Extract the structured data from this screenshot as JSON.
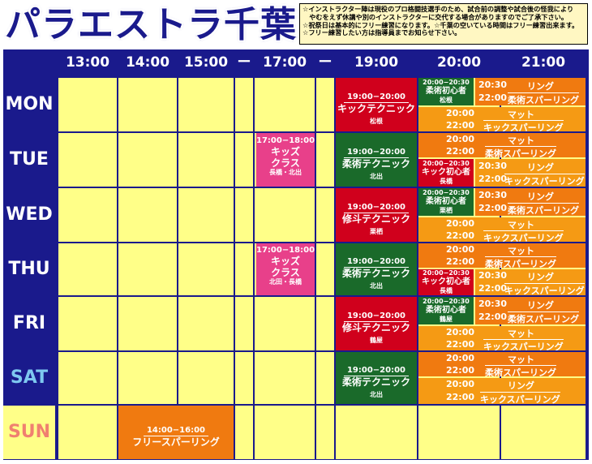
{
  "title": "パラエストラ千葉",
  "notice": [
    "☆インストラクター陣は現役のプロ格闘技選手のため、試合前の調整や試合後の怪我により",
    "　やむをえず休講や別のインストラクターに交代する場合がありますのでご了承下さい。",
    "☆祝祭日は基本的にフリー練習になります。☆千葉の空いている時間はフリー練習出来ます。",
    "☆フリー練習したい方は指導員までお知らせ下さい。"
  ],
  "headers": [
    "13:00",
    "14:00",
    "15:00",
    "ー",
    "17:00",
    "ー",
    "19:00",
    "20:00",
    "21:00"
  ],
  "days": [
    {
      "label": "MON",
      "color": "#ffffff"
    },
    {
      "label": "TUE",
      "color": "#ffffff"
    },
    {
      "label": "WED",
      "color": "#ffffff"
    },
    {
      "label": "THU",
      "color": "#ffffff"
    },
    {
      "label": "FRI",
      "color": "#ffffff"
    },
    {
      "label": "SAT",
      "color": "#7ec8f0"
    },
    {
      "label": "SUN",
      "color": "#f08070"
    }
  ],
  "colors": {
    "navy": "#1a1a8c",
    "cell": "#ffff88",
    "red": "#d0001c",
    "green": "#1a6a2a",
    "pink": "#e8408a",
    "orange": "#f07a10",
    "amber": "#f59a14"
  },
  "events": {
    "mon_main": {
      "time": "19:00−20:00",
      "name": "キックテクニック",
      "instructor": "松根"
    },
    "mon_small": {
      "time": "20:00−20:30",
      "name": "柔術初心者",
      "instructor": "松根"
    },
    "mon_ring": {
      "t1": "20:30",
      "t2": "22:00",
      "kind": "リング",
      "name": "柔術スパーリング"
    },
    "mon_mat": {
      "t1": "20:00",
      "t2": "22:00",
      "kind": "マット",
      "name": "キックスパーリング"
    },
    "tue_kids": {
      "time": "17:00−18:00",
      "name1": "キッズ",
      "name2": "クラス",
      "instructor": "長橋・北出"
    },
    "tue_main": {
      "time": "19:00−20:00",
      "name": "柔術テクニック",
      "instructor": "北出"
    },
    "tue_mat": {
      "t1": "20:00",
      "t2": "22:00",
      "kind": "マット",
      "name": "柔術スパーリング"
    },
    "tue_small": {
      "time": "20:00−20:30",
      "name": "キック初心者",
      "instructor": "長橋"
    },
    "tue_ring": {
      "t1": "20:30",
      "t2": "22:00",
      "kind": "リング",
      "name": "キックスパーリング"
    },
    "wed_main": {
      "time": "19:00−20:00",
      "name": "修斗テクニック",
      "instructor": "栗栖"
    },
    "wed_small": {
      "time": "20:00−20:30",
      "name": "柔術初心者",
      "instructor": "栗栖"
    },
    "wed_ring": {
      "t1": "20:30",
      "t2": "22:00",
      "kind": "リング",
      "name": "柔術スパーリング"
    },
    "wed_mat": {
      "t1": "20:00",
      "t2": "22:00",
      "kind": "マット",
      "name": "キックスパーリング"
    },
    "thu_kids": {
      "time": "17:00−18:00",
      "name1": "キッズ",
      "name2": "クラス",
      "instructor": "北田・長橋"
    },
    "thu_main": {
      "time": "19:00−20:00",
      "name": "柔術テクニック",
      "instructor": "北出"
    },
    "thu_mat": {
      "t1": "20:00",
      "t2": "22:00",
      "kind": "マット",
      "name": "柔術スパーリング"
    },
    "thu_small": {
      "time": "20:00−20:30",
      "name": "キック初心者",
      "instructor": "長橋"
    },
    "thu_ring": {
      "t1": "20:30",
      "t2": "22:00",
      "kind": "リング",
      "name": "キックスパーリング"
    },
    "fri_main": {
      "time": "19:00−20:00",
      "name": "修斗テクニック",
      "instructor": "鶴屋"
    },
    "fri_small": {
      "time": "20:00−20:30",
      "name": "柔術初心者",
      "instructor": "鶴屋"
    },
    "fri_ring": {
      "t1": "20:30",
      "t2": "22:00",
      "kind": "リング",
      "name": "柔術スパーリング"
    },
    "fri_mat": {
      "t1": "20:00",
      "t2": "22:00",
      "kind": "マット",
      "name": "キックスパーリング"
    },
    "sat_main": {
      "time": "19:00−20:00",
      "name": "柔術テクニック",
      "instructor": "北出"
    },
    "sat_mat": {
      "t1": "20:00",
      "t2": "22:00",
      "kind": "マット",
      "name": "柔術スパーリング"
    },
    "sat_ring": {
      "t1": "20:00",
      "t2": "22:00",
      "kind": "リング",
      "name": "キックスパーリング"
    },
    "sun_main": {
      "time": "14:00−16:00",
      "name": "フリースパーリング"
    }
  }
}
